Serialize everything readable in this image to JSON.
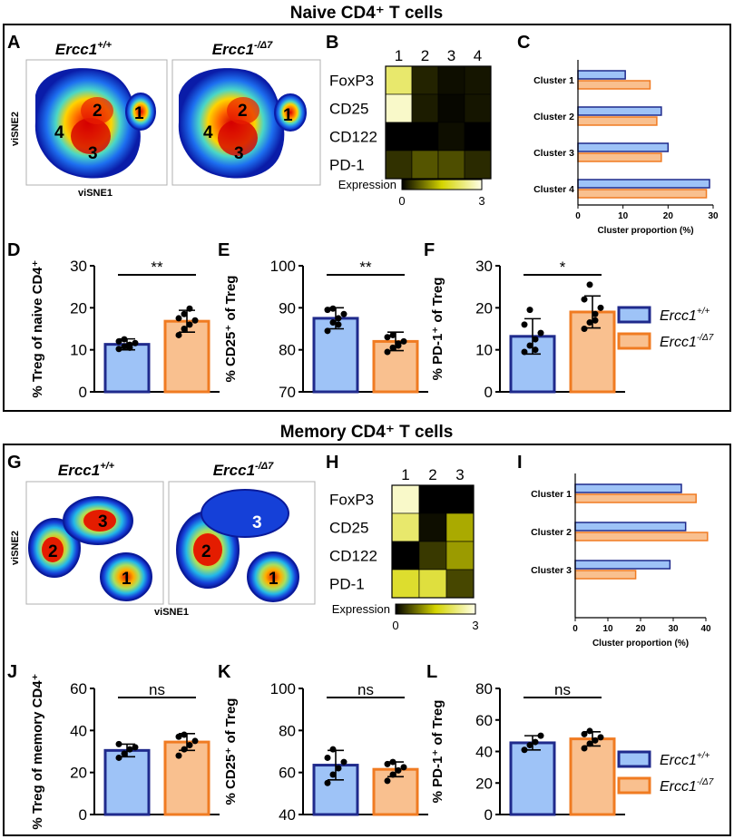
{
  "sections": {
    "naive_title": "Naive CD4⁺ T cells",
    "memory_title": "Memory CD4⁺ T cells"
  },
  "panel_letters": [
    "A",
    "B",
    "C",
    "D",
    "E",
    "F",
    "G",
    "H",
    "I",
    "J",
    "K",
    "L"
  ],
  "genotypes": {
    "wt": "Ercc1⁺ᐟ⁺",
    "mut": "Ercc1⁻ᐟΔ⁷"
  },
  "genotype_parts": {
    "base": "Ercc1",
    "wt_sup": "+/+",
    "mut_sup": "-/Δ7"
  },
  "tsne_axes": {
    "x": "viSNE1",
    "y": "viSNE2"
  },
  "colors": {
    "wt_fill": "#9ec3f7",
    "wt_edge": "#1f2a8c",
    "mut_fill": "#f9c08f",
    "mut_edge": "#f07b22",
    "frame": "#000000"
  },
  "heatmap_legend": {
    "label": "Expression",
    "min": "0",
    "max": "3"
  },
  "naive": {
    "tsne_clusters": [
      "1",
      "2",
      "3",
      "4"
    ],
    "heatmap": {
      "columns": [
        "1",
        "2",
        "3",
        "4"
      ],
      "rows": [
        "FoxP3",
        "CD25",
        "CD122",
        "PD-1"
      ],
      "values": [
        [
          2.2,
          0.25,
          0.1,
          0.15
        ],
        [
          2.8,
          0.2,
          0.05,
          0.15
        ],
        [
          0.0,
          0.0,
          0.1,
          0.0
        ],
        [
          0.35,
          0.6,
          0.55,
          0.3
        ]
      ]
    }
  },
  "memory": {
    "tsne_clusters": [
      "1",
      "2",
      "3"
    ],
    "heatmap": {
      "columns": [
        "1",
        "2",
        "3"
      ],
      "rows": [
        "FoxP3",
        "CD25",
        "CD122",
        "PD-1"
      ],
      "values": [
        [
          2.8,
          0.0,
          0.0
        ],
        [
          2.2,
          0.1,
          1.2
        ],
        [
          0.0,
          0.4,
          1.1
        ],
        [
          1.8,
          1.9,
          0.5
        ]
      ]
    }
  },
  "chart_data": [
    {
      "id": "C",
      "type": "bar",
      "orientation": "horizontal",
      "categories": [
        "Cluster 1",
        "Cluster 2",
        "Cluster 3",
        "Cluster 4"
      ],
      "series": [
        {
          "name": "Ercc1+/+",
          "values": [
            10.5,
            18.5,
            20,
            29.2
          ]
        },
        {
          "name": "Ercc1-/Δ7",
          "values": [
            16,
            17.5,
            18.5,
            28.5
          ]
        }
      ],
      "xlabel": "Cluster proportion (%)",
      "xlim": [
        0,
        30
      ],
      "ticks": [
        "0",
        "10",
        "20",
        "30"
      ]
    },
    {
      "id": "D",
      "type": "bar",
      "categories": [
        "Ercc1+/+",
        "Ercc1-/Δ7"
      ],
      "values": [
        11.3,
        16.8
      ],
      "errors": [
        1.3,
        2.6
      ],
      "points": [
        [
          10.2,
          10.8,
          11.2,
          11.6,
          12.0,
          12.5,
          10.5
        ],
        [
          13.5,
          15.0,
          16.0,
          17.0,
          17.5,
          18.5,
          19.8
        ]
      ],
      "ylabel": "% Treg of naive CD4⁺",
      "ylim": [
        0,
        30
      ],
      "ticks": [
        "0",
        "10",
        "20",
        "30"
      ],
      "significance": "**"
    },
    {
      "id": "E",
      "type": "bar",
      "categories": [
        "Ercc1+/+",
        "Ercc1-/Δ7"
      ],
      "values": [
        87.5,
        82
      ],
      "errors": [
        2.5,
        2.2
      ],
      "points": [
        [
          84.5,
          86.5,
          87.5,
          88.5,
          89.5,
          89.8,
          86
        ],
        [
          79.5,
          80.5,
          81.5,
          82,
          83,
          83.5,
          81
        ]
      ],
      "ylabel": "% CD25⁺ of Treg",
      "ylim": [
        70,
        100
      ],
      "ticks": [
        "70",
        "80",
        "90",
        "100"
      ],
      "significance": "**"
    },
    {
      "id": "F",
      "type": "bar",
      "categories": [
        "Ercc1+/+",
        "Ercc1-/Δ7"
      ],
      "values": [
        13.2,
        19
      ],
      "errors": [
        4.2,
        3.8
      ],
      "points": [
        [
          9.5,
          11,
          12.5,
          14,
          16,
          19.5,
          10
        ],
        [
          15,
          16.5,
          18.5,
          20,
          22,
          25.5,
          17
        ]
      ],
      "ylabel": "% PD-1⁺ of Treg",
      "ylim": [
        0,
        30
      ],
      "ticks": [
        "0",
        "10",
        "20",
        "30"
      ],
      "significance": "*"
    },
    {
      "id": "I",
      "type": "bar",
      "orientation": "horizontal",
      "categories": [
        "Cluster 1",
        "Cluster 2",
        "Cluster 3"
      ],
      "series": [
        {
          "name": "Ercc1+/+",
          "values": [
            32.5,
            33.8,
            29
          ]
        },
        {
          "name": "Ercc1-/Δ7",
          "values": [
            37,
            40.5,
            18.5
          ]
        }
      ],
      "xlabel": "Cluster proportion (%)",
      "xlim": [
        0,
        40
      ],
      "ticks": [
        "0",
        "10",
        "20",
        "30",
        "40"
      ]
    },
    {
      "id": "J",
      "type": "bar",
      "categories": [
        "Ercc1+/+",
        "Ercc1-/Δ7"
      ],
      "values": [
        30.5,
        34.5
      ],
      "errors": [
        3,
        4
      ],
      "points": [
        [
          27,
          29,
          31,
          32,
          33.5
        ],
        [
          28,
          31,
          33,
          35,
          37,
          38
        ]
      ],
      "ylabel": "% Treg of memory CD4⁺",
      "ylim": [
        0,
        60
      ],
      "ticks": [
        "0",
        "20",
        "40",
        "60"
      ],
      "significance": "ns"
    },
    {
      "id": "K",
      "type": "bar",
      "categories": [
        "Ercc1+/+",
        "Ercc1-/Δ7"
      ],
      "values": [
        63.5,
        61.5
      ],
      "errors": [
        7,
        3.5
      ],
      "points": [
        [
          55,
          59,
          62,
          65,
          67,
          71
        ],
        [
          56,
          59,
          61,
          62.5,
          64,
          65
        ]
      ],
      "ylabel": "% CD25⁺ of Treg",
      "ylim": [
        40,
        100
      ],
      "ticks": [
        "40",
        "60",
        "80",
        "100"
      ],
      "significance": "ns"
    },
    {
      "id": "L",
      "type": "bar",
      "categories": [
        "Ercc1+/+",
        "Ercc1-/Δ7"
      ],
      "values": [
        45.5,
        48
      ],
      "errors": [
        4.5,
        4.5
      ],
      "points": [
        [
          41,
          44,
          46,
          50
        ],
        [
          42,
          45,
          47,
          49,
          51,
          53
        ]
      ],
      "ylabel": "% PD-1⁺ of Treg",
      "ylim": [
        0,
        80
      ],
      "ticks": [
        "0",
        "20",
        "40",
        "60",
        "80"
      ],
      "significance": "ns"
    }
  ]
}
